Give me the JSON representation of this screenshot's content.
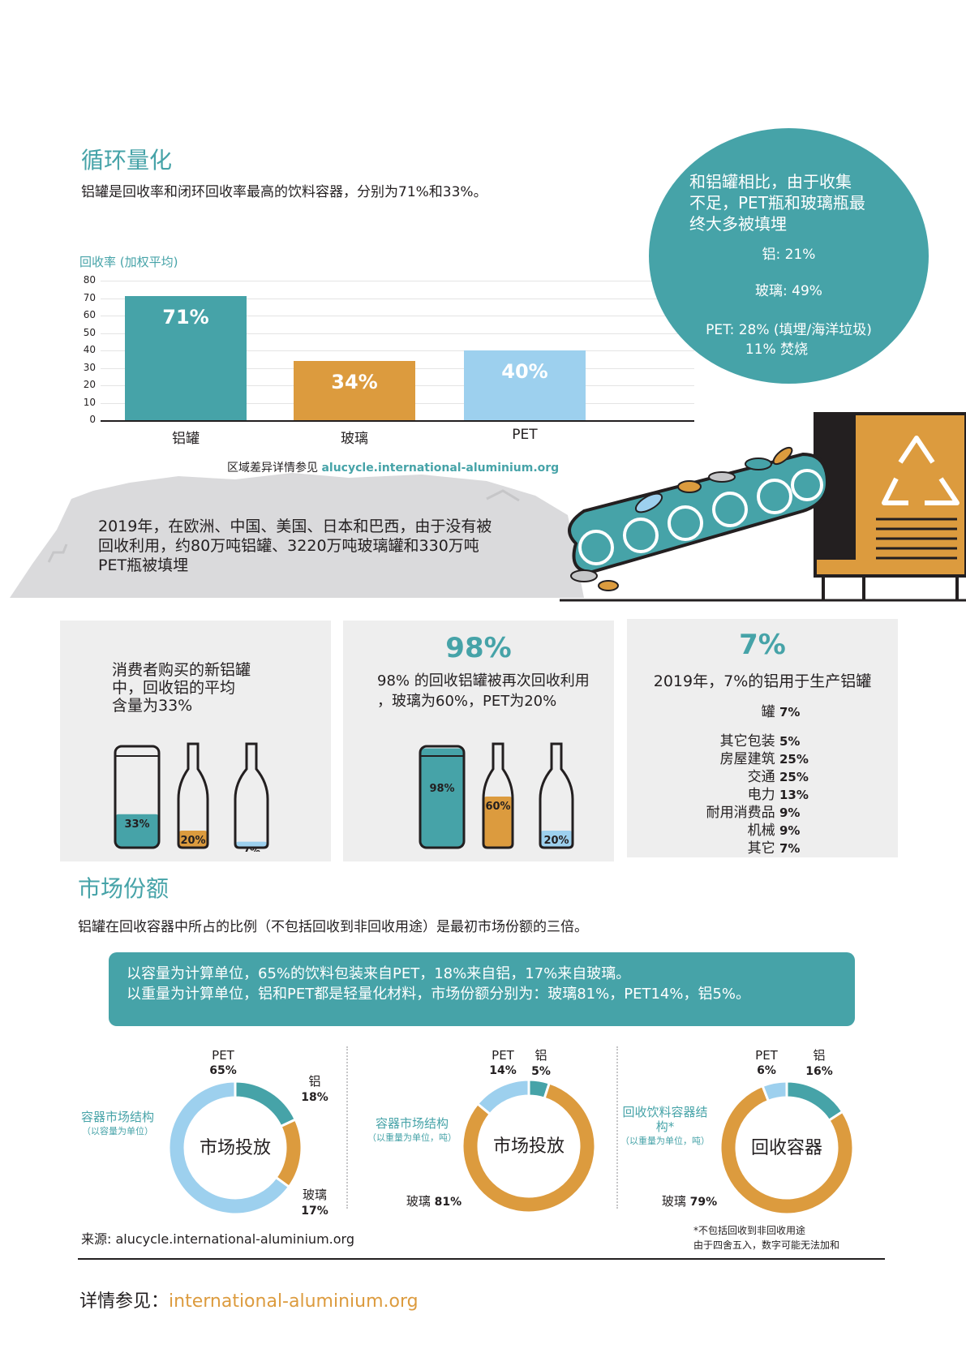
{
  "section1": {
    "title": "循环量化",
    "subtitle": "铝罐是回收率和闭环回收率最高的饮料容器，分别为71%和33%。"
  },
  "chart_data": {
    "type": "bar",
    "ylabel": "回收率 (加权平均)",
    "ylim": [
      0,
      80
    ],
    "yticks": [
      "0",
      "10",
      "20",
      "30",
      "40",
      "50",
      "60",
      "70",
      "80"
    ],
    "categories": [
      "铝罐",
      "玻璃",
      "PET"
    ],
    "values": [
      71,
      34,
      40
    ],
    "data_labels": [
      "71%",
      "34%",
      "40%"
    ],
    "colors": [
      "#46a3a8",
      "#dc9b3e",
      "#9dd0ee"
    ],
    "grid": true
  },
  "chart_note": {
    "prefix": "区域差异详情参见 ",
    "link": "alucycle.international-aluminium.org"
  },
  "landfill_circle": {
    "line1": "和铝罐相比，由于收集",
    "line2": "不足，PET瓶和玻璃瓶最",
    "line3": "终大多被填埋",
    "al": "铝: 21%",
    "glass": "玻璃: 49%",
    "pet": "PET: 28% (填埋/海洋垃圾)",
    "pet_burn": "11% 焚烧"
  },
  "landfill_text": {
    "line1": "2019年，在欧洲、中国、美国、日本和巴西，由于没有被",
    "line2": "回收利用，约80万吨铝罐、3220万吨玻璃罐和330万吨",
    "line3": "PET瓶被填埋"
  },
  "panel1": {
    "line1": "消费者购买的新铝罐",
    "line2": "中，回收铝的平均",
    "line3": "含量为33%",
    "can": "33%",
    "can_level": 0.33,
    "bottle": "20%",
    "bottle_level": 0.2,
    "pet": "7%",
    "pet_level": 0.07
  },
  "panel2": {
    "big": "98%",
    "line1": "98% 的回收铝罐被再次回收利用",
    "line2": "，玻璃为60%，PET为20%",
    "can": "98%",
    "can_level": 0.98,
    "bottle": "60%",
    "bottle_level": 0.6,
    "pet": "20%",
    "pet_level": 0.2
  },
  "panel3": {
    "big": "7%",
    "line1": "2019年，7%的铝用于生产铝罐",
    "rows": [
      {
        "label": "罐",
        "value": "7%"
      },
      {
        "label": "其它包装",
        "value": "5%"
      },
      {
        "label": "房屋建筑",
        "value": "25%"
      },
      {
        "label": "交通",
        "value": "25%"
      },
      {
        "label": "电力",
        "value": "13%"
      },
      {
        "label": "耐用消费品",
        "value": "9%"
      },
      {
        "label": "机械",
        "value": "9%"
      },
      {
        "label": "其它",
        "value": "7%"
      }
    ]
  },
  "section2": {
    "title": "市场份额",
    "subtitle": "铝罐在回收容器中所占的比例（不包括回收到非回收用途）是最初市场份额的三倍。"
  },
  "banner": {
    "line1": "以容量为计算单位，65%的饮料包装来自PET，18%来自铝，17%来自玻璃。",
    "line2": "以重量为计算单位，铝和PET都是轻量化材料，市场份额分别为：玻璃81%，PET14%，铝5%。"
  },
  "donuts": [
    {
      "title": "容器市场结构",
      "subtitle": "（以容量为单位）",
      "center": "市场投放",
      "slices": [
        {
          "name": "铝",
          "value": 18,
          "label": "18%",
          "color": "#46a3a8"
        },
        {
          "name": "玻璃",
          "value": 17,
          "label": "17%",
          "color": "#dc9b3e"
        },
        {
          "name": "PET",
          "value": 65,
          "label": "65%",
          "color": "#9dd0ee"
        }
      ]
    },
    {
      "title": "容器市场结构",
      "subtitle": "（以重量为单位，吨）",
      "center": "市场投放",
      "slices": [
        {
          "name": "铝",
          "value": 5,
          "label": "5%",
          "color": "#46a3a8"
        },
        {
          "name": "玻璃",
          "value": 81,
          "label": "81%",
          "color": "#dc9b3e"
        },
        {
          "name": "PET",
          "value": 14,
          "label": "14%",
          "color": "#9dd0ee"
        }
      ]
    },
    {
      "title": "回收饮料容器结",
      "title2": "构*",
      "subtitle": "（以重量为单位，吨）",
      "center": "回收容器",
      "slices": [
        {
          "name": "铝",
          "value": 16,
          "label": "16%",
          "color": "#46a3a8"
        },
        {
          "name": "玻璃",
          "value": 79,
          "label": "79%",
          "color": "#dc9b3e"
        },
        {
          "name": "PET",
          "value": 6,
          "label": "6%",
          "color": "#9dd0ee"
        }
      ]
    }
  ],
  "source": "来源: alucycle.international-aluminium.org",
  "footnote1": "*不包括回收到非回收用途",
  "footnote2": "由于四舍五入，数字可能无法加和",
  "footer": {
    "prefix": "详情参见：",
    "link": "international-aluminium.org"
  }
}
